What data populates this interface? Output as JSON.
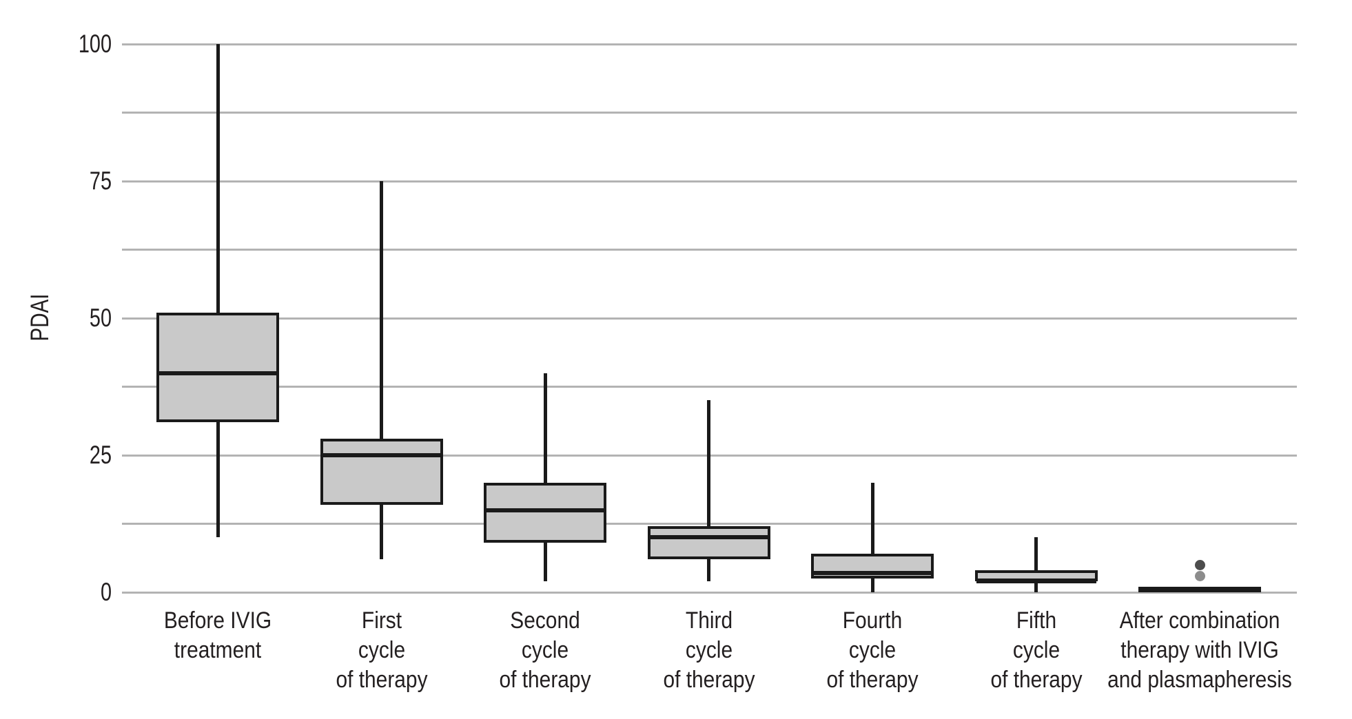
{
  "chart_data": {
    "type": "boxplot",
    "ylabel": "PDAI",
    "xlabel": "",
    "y_axis": {
      "min": 0,
      "max": 100,
      "major_ticks": [
        0,
        25,
        50,
        75,
        100
      ],
      "gridline_step": 12.5,
      "grid": true
    },
    "legend": null,
    "categories": [
      {
        "label_lines": [
          "Before IVIG",
          "treatment"
        ],
        "min": 10,
        "q1": 31,
        "median": 40,
        "q3": 51,
        "max": 100,
        "outliers": []
      },
      {
        "label_lines": [
          "First",
          "cycle",
          "of therapy"
        ],
        "min": 6,
        "q1": 16,
        "median": 25,
        "q3": 28,
        "max": 75,
        "outliers": []
      },
      {
        "label_lines": [
          "Second",
          "cycle",
          "of therapy"
        ],
        "min": 2,
        "q1": 9,
        "median": 15,
        "q3": 20,
        "max": 40,
        "outliers": []
      },
      {
        "label_lines": [
          "Third",
          "cycle",
          "of therapy"
        ],
        "min": 2,
        "q1": 6,
        "median": 10,
        "q3": 12,
        "max": 35,
        "outliers": []
      },
      {
        "label_lines": [
          "Fourth",
          "cycle",
          "of therapy"
        ],
        "min": 0,
        "q1": 2.5,
        "median": 3.5,
        "q3": 7,
        "max": 20,
        "outliers": []
      },
      {
        "label_lines": [
          "Fifth",
          "cycle",
          "of therapy"
        ],
        "min": 0,
        "q1": 2,
        "median": 2,
        "q3": 4,
        "max": 10,
        "outliers": []
      },
      {
        "label_lines": [
          "After combination",
          "therapy with IVIG",
          "and plasmapheresis"
        ],
        "min": 0,
        "q1": 0,
        "median": 0.5,
        "q3": 1,
        "max": 1,
        "outliers": [
          {
            "value": 5,
            "color": "#4d4d4d"
          },
          {
            "value": 3,
            "color": "#8c8c8c"
          }
        ]
      }
    ],
    "colors": {
      "box_fill": "#c9c9c9",
      "box_border": "#1a1a1a",
      "median": "#1a1a1a",
      "whisker": "#1a1a1a",
      "gridline": "#b3b3b3",
      "text": "#231f20",
      "background": "#ffffff"
    }
  }
}
